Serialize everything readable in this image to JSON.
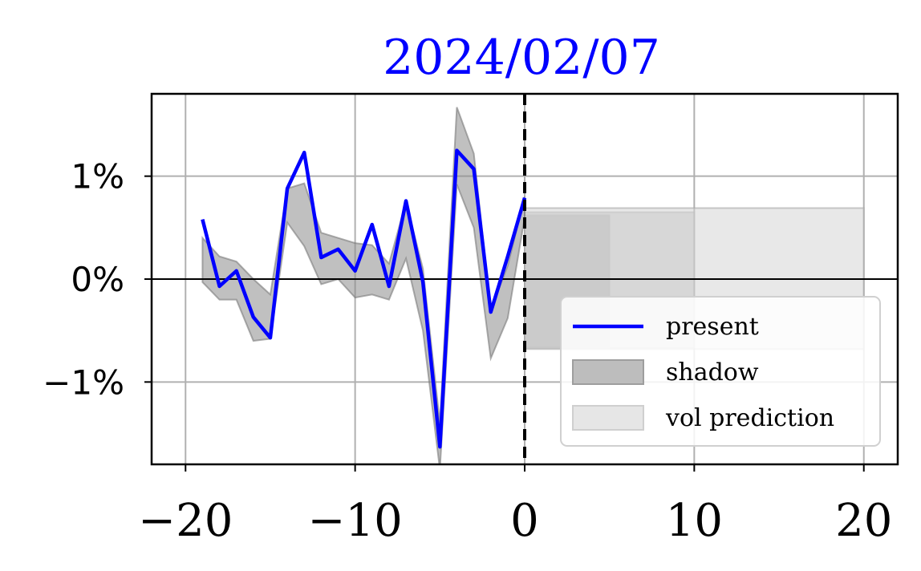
{
  "chart_data": {
    "type": "line",
    "title": "2024/02/07",
    "xlabel": "",
    "ylabel": "",
    "xlim": [
      -22,
      22
    ],
    "ylim": [
      -1.8,
      1.8
    ],
    "grid": true,
    "legend_placement": "lower-right",
    "x_ticks": [
      {
        "value": -20,
        "label": "−20"
      },
      {
        "value": -10,
        "label": "−10"
      },
      {
        "value": 0,
        "label": "0"
      },
      {
        "value": 10,
        "label": "10"
      },
      {
        "value": 20,
        "label": "20"
      }
    ],
    "y_ticks": [
      {
        "value": 1,
        "label": "1%"
      },
      {
        "value": 0,
        "label": "0%"
      },
      {
        "value": -1,
        "label": "−1%"
      }
    ],
    "series": [
      {
        "name": "present",
        "color": "#0000ff",
        "x": [
          -19,
          -18,
          -17,
          -16,
          -15,
          -14,
          -13,
          -12,
          -11,
          -10,
          -9,
          -8,
          -7,
          -6,
          -5,
          -4,
          -3,
          -2,
          -1,
          0
        ],
        "values": [
          0.58,
          -0.07,
          0.08,
          -0.37,
          -0.57,
          0.88,
          1.23,
          0.21,
          0.29,
          0.08,
          0.53,
          -0.07,
          0.76,
          -0.03,
          -1.63,
          1.25,
          1.07,
          -0.32,
          0.22,
          0.79
        ]
      }
    ],
    "shadow": {
      "name": "shadow",
      "color": "#888888",
      "x": [
        -19,
        -18,
        -17,
        -16,
        -15,
        -14,
        -13,
        -12,
        -11,
        -10,
        -9,
        -8,
        -7,
        -6,
        -5,
        -4,
        -3,
        -2,
        -1,
        0
      ],
      "upper": [
        0.4,
        0.22,
        0.17,
        0.0,
        -0.15,
        0.88,
        0.93,
        0.45,
        0.4,
        0.35,
        0.33,
        0.15,
        0.75,
        0.1,
        -1.4,
        1.67,
        1.22,
        -0.3,
        0.13,
        0.8
      ],
      "lower": [
        -0.03,
        -0.2,
        -0.2,
        -0.6,
        -0.58,
        0.55,
        0.32,
        -0.05,
        0.0,
        -0.18,
        -0.15,
        -0.2,
        0.2,
        -0.5,
        -1.85,
        0.92,
        0.5,
        -0.77,
        -0.38,
        0.6
      ]
    },
    "vol_prediction": [
      {
        "name": "shadow",
        "x": [
          0,
          5
        ],
        "y": [
          -0.66,
          0.62
        ],
        "color": "#999999",
        "opacity": 0.6
      },
      {
        "name": "vol prediction",
        "x": [
          0,
          10
        ],
        "y": [
          -0.67,
          0.65
        ],
        "color": "#bbbbbb",
        "opacity": 0.55
      },
      {
        "name": "vol prediction",
        "x": [
          0,
          20
        ],
        "y": [
          -0.68,
          0.69
        ],
        "color": "#d6d6d6",
        "opacity": 0.55
      }
    ],
    "vline": {
      "x": 0,
      "style": "dashed",
      "color": "#000000"
    },
    "hline": {
      "y": 0,
      "color": "#000000"
    },
    "legend": [
      {
        "label": "present",
        "kind": "line",
        "color": "#0000ff"
      },
      {
        "label": "shadow",
        "kind": "patch",
        "color": "#bdbdbd",
        "edge": "#9e9e9e"
      },
      {
        "label": "vol prediction",
        "kind": "patch",
        "color": "#e6e6e6",
        "edge": "#cfcfcf"
      }
    ],
    "title_color": "#0000ff"
  }
}
